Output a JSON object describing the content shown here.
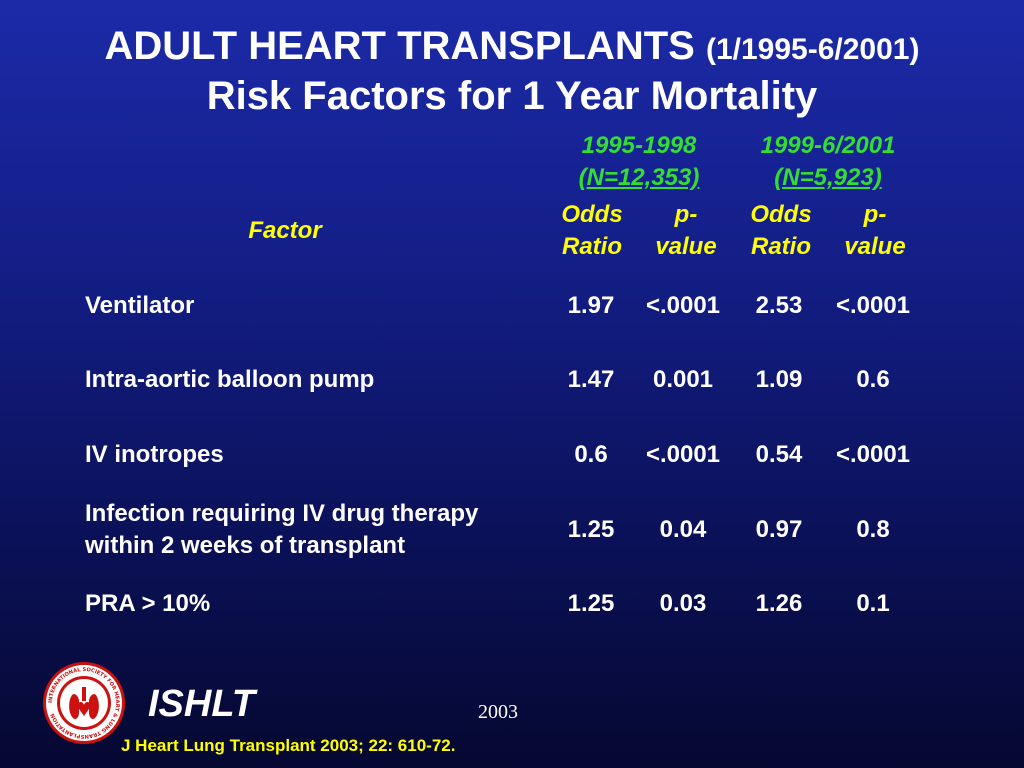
{
  "slide": {
    "title_main": "ADULT HEART TRANSPLANTS",
    "title_dates": "(1/1995-6/2001)",
    "subtitle": "Risk Factors for 1 Year Mortality"
  },
  "table": {
    "factor_header": "Factor",
    "periods": [
      {
        "years": "1995-1998",
        "n": "(N=12,353)"
      },
      {
        "years": "1999-6/2001",
        "n": "(N=5,923)"
      }
    ],
    "columns": [
      {
        "line1": "Odds",
        "line2": "Ratio"
      },
      {
        "line1": "p-",
        "line2": "value"
      },
      {
        "line1": "Odds",
        "line2": "Ratio"
      },
      {
        "line1": "p-",
        "line2": "value"
      }
    ],
    "rows": [
      {
        "factor": [
          "Ventilator"
        ],
        "values": [
          "1.97",
          "<.0001",
          "2.53",
          "<.0001"
        ]
      },
      {
        "factor": [
          "Intra-aortic balloon pump"
        ],
        "values": [
          "1.47",
          "0.001",
          "1.09",
          "0.6"
        ]
      },
      {
        "factor": [
          "IV inotropes"
        ],
        "values": [
          "0.6",
          "<.0001",
          "0.54",
          "<.0001"
        ]
      },
      {
        "factor": [
          "Infection requiring IV drug therapy",
          "within 2 weeks of transplant"
        ],
        "values": [
          "1.25",
          "0.04",
          "0.97",
          "0.8"
        ]
      },
      {
        "factor": [
          "PRA > 10%"
        ],
        "values": [
          "1.25",
          "0.03",
          "1.26",
          "0.1"
        ]
      }
    ]
  },
  "footer": {
    "org": "ISHLT",
    "year": "2003",
    "citation": "J Heart Lung Transplant 2003; 22: 610-72.",
    "logo_text": "INTERNATIONAL SOCIETY FOR HEART & LUNG TRANSPLANTATION"
  },
  "colors": {
    "background": "#131e86",
    "header_yellow": "#ffff00",
    "period_green": "#33dd33",
    "logo_red": "#cc1111"
  },
  "icons": {
    "logo": "ishlt-heart-lungs-seal-icon"
  }
}
